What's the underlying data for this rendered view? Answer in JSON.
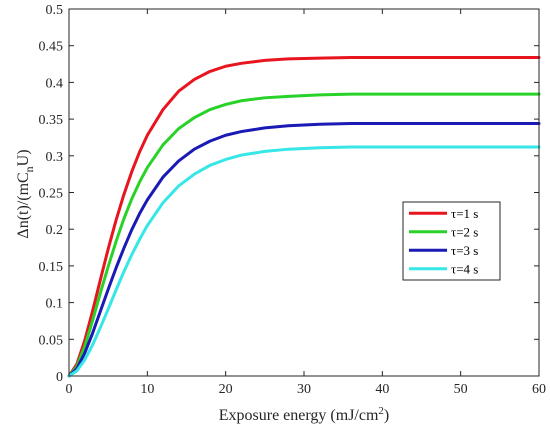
{
  "chart_data": {
    "type": "line",
    "xlabel": "Exposure energy (mJ/cm",
    "xlabel_sup": "2",
    "xlabel_tail": ")",
    "ylabel": "Δn(t)/(mC",
    "ylabel_sub": "n",
    "ylabel_tail": "U)",
    "xlim": [
      0,
      60
    ],
    "ylim": [
      0,
      0.5
    ],
    "xticks": [
      "0",
      "10",
      "20",
      "30",
      "40",
      "50",
      "60"
    ],
    "yticks": [
      "0",
      "0.05",
      "0.1",
      "0.15",
      "0.2",
      "0.25",
      "0.3",
      "0.35",
      "0.4",
      "0.45",
      "0.5"
    ],
    "grid": false,
    "legend_position": "right-middle",
    "x": [
      0,
      1,
      2,
      3,
      4,
      5,
      6,
      7,
      8,
      9,
      10,
      12,
      14,
      16,
      18,
      20,
      22,
      25,
      28,
      32,
      36,
      40,
      45,
      50,
      55,
      60
    ],
    "series": [
      {
        "name": "τ=1 s",
        "color": "#e8141e",
        "values": [
          0,
          0.016,
          0.048,
          0.088,
          0.131,
          0.173,
          0.212,
          0.247,
          0.278,
          0.305,
          0.328,
          0.363,
          0.388,
          0.404,
          0.415,
          0.422,
          0.426,
          0.43,
          0.432,
          0.433,
          0.434,
          0.434,
          0.434,
          0.434,
          0.434,
          0.434
        ]
      },
      {
        "name": "τ=2 s",
        "color": "#28d228",
        "values": [
          0,
          0.013,
          0.04,
          0.075,
          0.113,
          0.149,
          0.183,
          0.214,
          0.241,
          0.264,
          0.284,
          0.315,
          0.337,
          0.352,
          0.363,
          0.37,
          0.375,
          0.379,
          0.381,
          0.383,
          0.384,
          0.384,
          0.384,
          0.384,
          0.384,
          0.384
        ]
      },
      {
        "name": "τ=3 s",
        "color": "#1a1ab4",
        "values": [
          0,
          0.01,
          0.031,
          0.058,
          0.088,
          0.118,
          0.147,
          0.174,
          0.199,
          0.221,
          0.24,
          0.271,
          0.293,
          0.309,
          0.32,
          0.328,
          0.333,
          0.338,
          0.341,
          0.343,
          0.344,
          0.344,
          0.344,
          0.344,
          0.344,
          0.344
        ]
      },
      {
        "name": "τ=4 s",
        "color": "#37e6e6",
        "values": [
          0,
          0.007,
          0.022,
          0.042,
          0.066,
          0.091,
          0.117,
          0.142,
          0.165,
          0.186,
          0.205,
          0.236,
          0.259,
          0.275,
          0.287,
          0.295,
          0.301,
          0.306,
          0.309,
          0.311,
          0.312,
          0.312,
          0.312,
          0.312,
          0.312,
          0.312
        ]
      }
    ]
  }
}
